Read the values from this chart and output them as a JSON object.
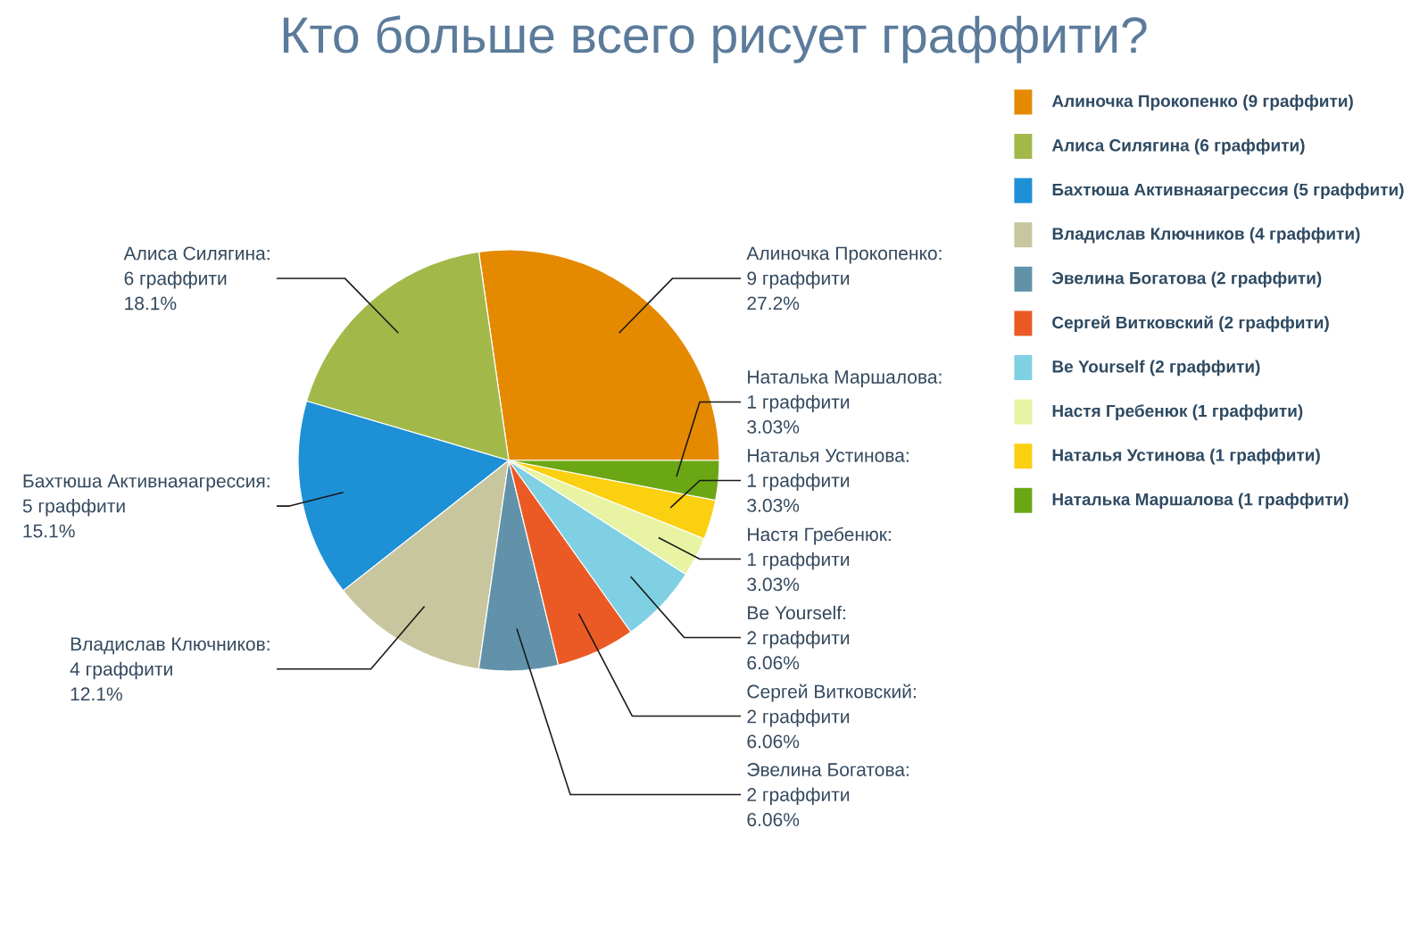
{
  "chart_data": {
    "type": "pie",
    "title": "Кто больше всего рисует граффити?",
    "categories": [
      "Алиночка Прокопенко (9 граффити)",
      "Алиса Силягина (6 граффити)",
      "Бахтюша Активнаяагрессия (5 граффити)",
      "Владислав Ключников (4 граффити)",
      "Эвелина Богатова (2 граффити)",
      "Сергей Витковский (2 граффити)",
      "Be Yourself (2 граффити)",
      "Настя Гребенюк (1 граффити)",
      "Наталья Устинова (1 граффити)",
      "Наталька Маршалова (1 граффити)"
    ],
    "values": [
      9,
      6,
      5,
      4,
      2,
      2,
      2,
      1,
      1,
      1
    ],
    "colors": [
      "#e58a00",
      "#a2b94a",
      "#1e90d6",
      "#c8c69e",
      "#6192aa",
      "#eb5a24",
      "#80d0e4",
      "#e8f3a3",
      "#fad010",
      "#6ba714"
    ],
    "value_labels": [
      "Алиночка Прокопенко:\n9 граффити\n27.2%",
      "Алиса Силягина:\n6 граффити\n18.1%",
      "Бахтюша Активнаяагрессия:\n5 граффити\n15.1%",
      "Владислав Ключников:\n4 граффити\n12.1%",
      "Эвелина Богатова:\n2 граффити\n6.06%",
      "Сергей Витковский:\n2 граффити\n6.06%",
      "Be Yourself:\n2 граффити\n6.06%",
      "Настя Гребенюк:\n1 граффити\n3.03%",
      "Наталья Устинова:\n1 граффити\n3.03%",
      "Наталька Маршалова:\n1 граффити\n3.03%"
    ],
    "legend": "top right"
  }
}
